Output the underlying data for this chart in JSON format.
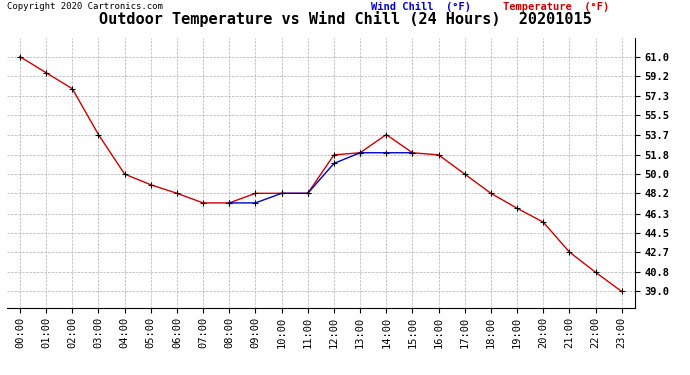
{
  "title": "Outdoor Temperature vs Wind Chill (24 Hours)  20201015",
  "copyright_text": "Copyright 2020 Cartronics.com",
  "legend_windchill": "Wind Chill  (°F)",
  "legend_temperature": "Temperature  (°F)",
  "hours": [
    0,
    1,
    2,
    3,
    4,
    5,
    6,
    7,
    8,
    9,
    10,
    11,
    12,
    13,
    14,
    15,
    16,
    17,
    18,
    19,
    20,
    21,
    22,
    23
  ],
  "temperature": [
    61.0,
    59.5,
    58.0,
    53.7,
    50.0,
    49.0,
    48.2,
    47.3,
    47.3,
    48.2,
    48.2,
    48.2,
    51.8,
    52.0,
    53.7,
    52.0,
    51.8,
    50.0,
    48.2,
    46.8,
    45.5,
    42.7,
    40.8,
    39.0
  ],
  "windchill": [
    null,
    null,
    null,
    null,
    null,
    null,
    null,
    null,
    47.3,
    47.3,
    48.2,
    48.2,
    51.0,
    52.0,
    52.0,
    52.0,
    null,
    null,
    null,
    null,
    null,
    null,
    null,
    null
  ],
  "temp_color": "#cc0000",
  "windchill_color": "#0000cc",
  "marker_color": "#000000",
  "background_color": "#ffffff",
  "grid_color": "#b0b0b0",
  "ylim_min": 37.5,
  "ylim_max": 62.8,
  "yticks": [
    39.0,
    40.8,
    42.7,
    44.5,
    46.3,
    48.2,
    50.0,
    51.8,
    53.7,
    55.5,
    57.3,
    59.2,
    61.0
  ],
  "title_fontsize": 11,
  "tick_fontsize": 7.5
}
